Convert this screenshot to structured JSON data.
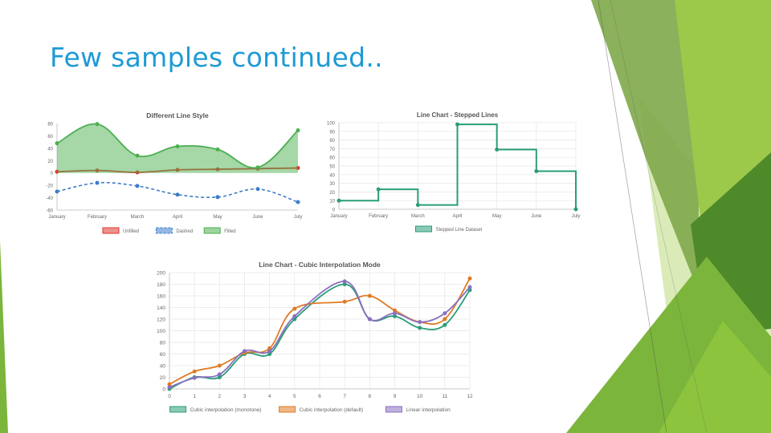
{
  "slide": {
    "title": "Few samples continued..",
    "colors": {
      "title": "#1e9ad6",
      "green_dark": "#4e8a2a",
      "green_mid": "#7cb53b",
      "green_light": "#9cc94a",
      "green_pale": "#d3e7ab"
    }
  },
  "chart_data": [
    {
      "type": "line",
      "title": "Different Line Style",
      "categories": [
        "January",
        "February",
        "March",
        "April",
        "May",
        "June",
        "July"
      ],
      "ylim": [
        -60,
        80
      ],
      "yticks": [
        -60,
        -40,
        -20,
        0,
        20,
        40,
        60,
        80
      ],
      "ytick_labels": [
        "-60",
        "-40",
        "-20",
        "0",
        "20",
        "40",
        "60",
        "80"
      ],
      "grid": false,
      "legend_position": "bottom",
      "series": [
        {
          "name": "Unfilled",
          "values": [
            2,
            4,
            1,
            5,
            6,
            7,
            8
          ],
          "color": "#e0372b",
          "style": "solid"
        },
        {
          "name": "Dashed",
          "values": [
            -30,
            -16,
            -21,
            -35,
            -39,
            -26,
            -47
          ],
          "color": "#3d7cc9",
          "style": "dashed"
        },
        {
          "name": "Filled",
          "values": [
            48,
            79,
            28,
            43,
            38,
            9,
            69
          ],
          "color": "#4caf50",
          "style": "filled"
        }
      ]
    },
    {
      "type": "line",
      "title": "Line Chart - Stepped Lines",
      "categories": [
        "January",
        "February",
        "March",
        "April",
        "May",
        "June",
        "July"
      ],
      "ylim": [
        0,
        100
      ],
      "yticks": [
        0,
        10,
        20,
        30,
        40,
        50,
        60,
        70,
        80,
        90,
        100
      ],
      "ytick_labels": [
        "0",
        "10",
        "20",
        "30",
        "40",
        "50",
        "60",
        "70",
        "80",
        "90",
        "100"
      ],
      "grid": true,
      "legend_position": "bottom",
      "series": [
        {
          "name": "Stepped Line Dataset",
          "values": [
            10,
            23,
            5,
            98,
            69,
            44,
            0
          ],
          "color": "#2a9d78",
          "style": "stepped"
        }
      ]
    },
    {
      "type": "line",
      "title": "Line Chart - Cubic Interpolation Mode",
      "x": [
        0,
        1,
        2,
        3,
        4,
        5,
        6,
        7,
        8,
        9,
        10,
        11,
        12
      ],
      "xtick_labels": [
        "0",
        "1",
        "2",
        "3",
        "4",
        "5",
        "6",
        "7",
        "8",
        "9",
        "10",
        "11",
        "12"
      ],
      "ylim": [
        0,
        200
      ],
      "yticks": [
        0,
        20,
        40,
        60,
        80,
        100,
        120,
        140,
        160,
        180,
        200
      ],
      "ytick_labels": [
        "0",
        "20",
        "40",
        "60",
        "80",
        "100",
        "120",
        "140",
        "160",
        "180",
        "200"
      ],
      "grid": true,
      "legend_position": "bottom",
      "series": [
        {
          "name": "Cubic interpolation (monotone)",
          "values": [
            0,
            20,
            20,
            60,
            60,
            120,
            null,
            180,
            120,
            125,
            105,
            110,
            170
          ],
          "color": "#2a9d78"
        },
        {
          "name": "Cubic interpolation (default)",
          "values": [
            8,
            30,
            40,
            62,
            70,
            138,
            null,
            150,
            160,
            135,
            115,
            120,
            190
          ],
          "color": "#e07b24"
        },
        {
          "name": "Linear interpolation",
          "values": [
            3,
            19,
            25,
            65,
            65,
            125,
            null,
            185,
            120,
            130,
            115,
            130,
            175
          ],
          "color": "#8a6fc0"
        }
      ]
    }
  ]
}
